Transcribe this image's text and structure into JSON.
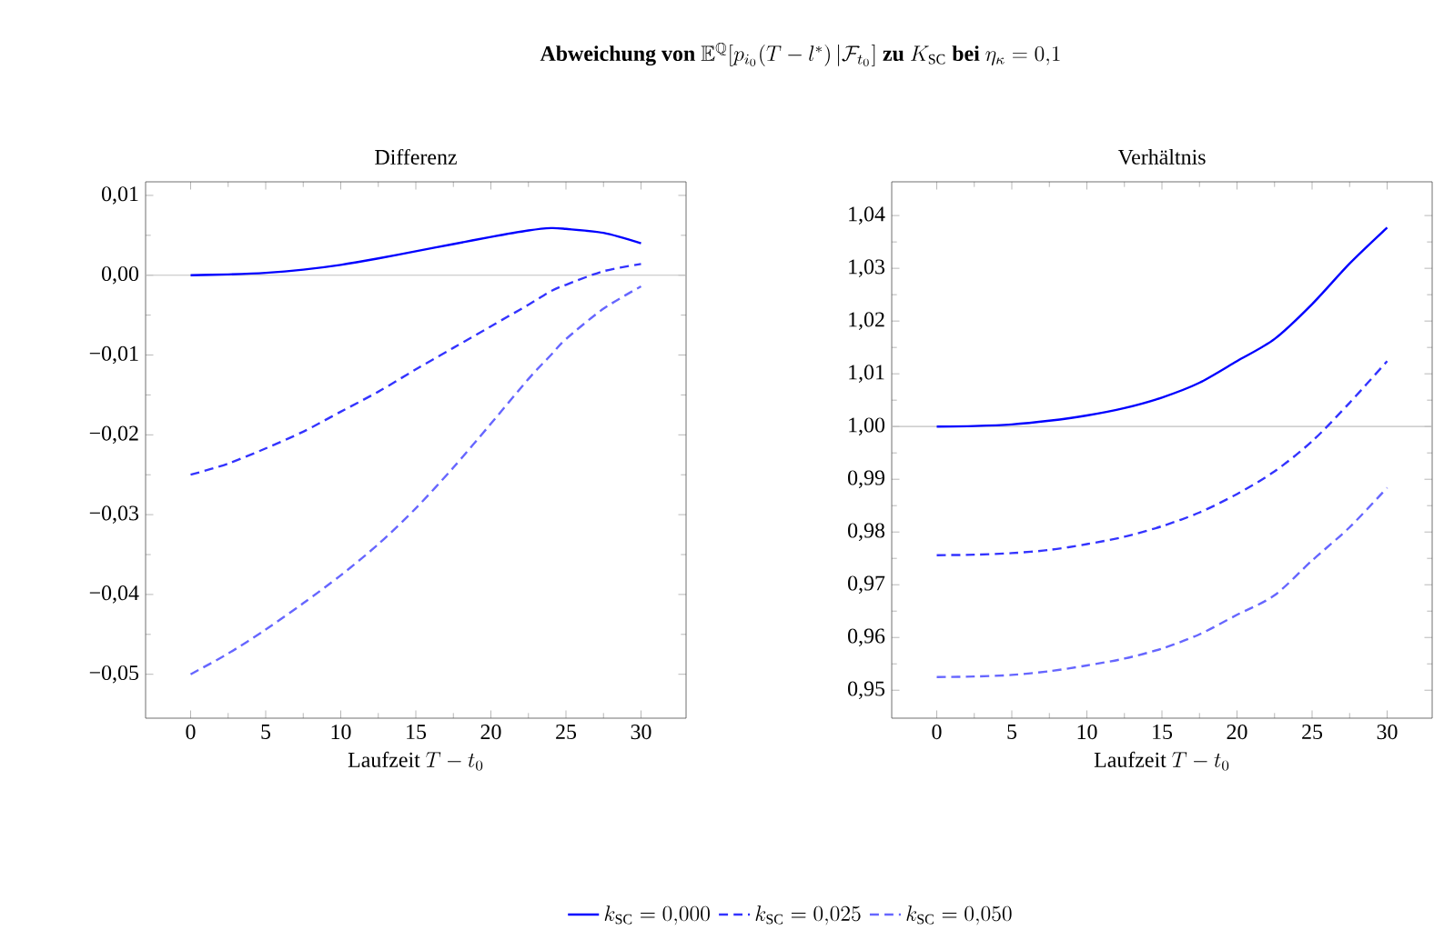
{
  "chart_data": [
    {
      "type": "line",
      "title": "\\textbf{Abweichung von }\\mathbb{E}^{\\mathbb{Q}}[p_{i_0}(T-l^*)\\,|\\mathcal{F}_{t_0}]\\textbf{ zu }K_{\\mathrm{SC}}\\textbf{ bei }\\eta_\\kappa=0{,}1",
      "subtitle": "Differenz",
      "xlabel": "\\mbox{Laufzeit }T-t_0",
      "x": [
        0,
        2.5,
        5,
        7.5,
        10,
        12.5,
        15,
        17.5,
        20,
        22.5,
        24,
        25,
        27.5,
        30
      ],
      "series": [
        {
          "name": "k_{\\mathrm{SC}}=0{,}000",
          "color": "#0000ff",
          "line_style": "solid",
          "values": [
            0.0,
            0.0001,
            0.0003,
            0.0007,
            0.0013,
            0.0021,
            0.003,
            0.0039,
            0.0048,
            0.0056,
            0.0059,
            0.0058,
            0.0053,
            0.004
          ]
        },
        {
          "name": "k_{\\mathrm{SC}}=0{,}025",
          "color": "#3333ff",
          "line_style": "dashed",
          "values": [
            -0.025,
            -0.0236,
            -0.0217,
            -0.0196,
            -0.0171,
            -0.0146,
            -0.0118,
            -0.0091,
            -0.0064,
            -0.0037,
            -0.002,
            -0.0012,
            0.0005,
            0.0014
          ]
        },
        {
          "name": "k_{\\mathrm{SC}}=0{,}050",
          "color": "#6666ff",
          "line_style": "dashed",
          "values": [
            -0.05,
            -0.0474,
            -0.0444,
            -0.0411,
            -0.0376,
            -0.0337,
            -0.0292,
            -0.0241,
            -0.0186,
            -0.013,
            -0.01,
            -0.008,
            -0.0042,
            -0.0014
          ]
        }
      ],
      "xlim": [
        -3,
        33
      ],
      "ylim": [
        -0.0555,
        0.0117
      ],
      "xticks": [
        0,
        5,
        10,
        15,
        20,
        25,
        30
      ],
      "yticks": [
        {
          "value": -0.05,
          "label": "−0,05"
        },
        {
          "value": -0.04,
          "label": "−0,04"
        },
        {
          "value": -0.03,
          "label": "−0,03"
        },
        {
          "value": -0.02,
          "label": "−0,02"
        },
        {
          "value": -0.01,
          "label": "−0,01"
        },
        {
          "value": 0,
          "label": "0,00"
        },
        {
          "value": 0.01,
          "label": "0,01"
        }
      ],
      "ref_lines": [
        {
          "axis": "y",
          "value": 0,
          "color": "#c0c0c0"
        }
      ],
      "legend": "bottom",
      "grid": false
    },
    {
      "type": "line",
      "subtitle": "Verhältnis",
      "xlabel": "\\mbox{Laufzeit }T-t_0",
      "x": [
        0,
        2.5,
        5,
        7.5,
        10,
        12.5,
        15,
        17.5,
        20,
        22.5,
        25,
        27.5,
        30
      ],
      "series": [
        {
          "color": "#0000ff",
          "line_style": "solid",
          "values": [
            1.0,
            1.0001,
            1.0004,
            1.0011,
            1.0021,
            1.0035,
            1.0055,
            1.0083,
            1.0124,
            1.0166,
            1.0232,
            1.0309,
            1.0377
          ]
        },
        {
          "color": "#3333ff",
          "line_style": "dashed",
          "values": [
            0.9756,
            0.9757,
            0.976,
            0.9766,
            0.9777,
            0.9791,
            0.9811,
            0.9837,
            0.9872,
            0.9915,
            0.9972,
            1.0045,
            1.0124
          ]
        },
        {
          "color": "#6666ff",
          "line_style": "dashed",
          "values": [
            0.9525,
            0.9526,
            0.9529,
            0.9536,
            0.9547,
            0.956,
            0.9579,
            0.9606,
            0.9643,
            0.968,
            0.9746,
            0.9809,
            0.9884
          ]
        }
      ],
      "xlim": [
        -3,
        33
      ],
      "ylim": [
        0.9447,
        1.0464
      ],
      "xticks": [
        0,
        5,
        10,
        15,
        20,
        25,
        30
      ],
      "yticks": [
        {
          "value": 0.95,
          "label": "0,95"
        },
        {
          "value": 0.96,
          "label": "0,96"
        },
        {
          "value": 0.97,
          "label": "0,97"
        },
        {
          "value": 0.98,
          "label": "0,98"
        },
        {
          "value": 0.99,
          "label": "0,99"
        },
        {
          "value": 1.0,
          "label": "1,00"
        },
        {
          "value": 1.01,
          "label": "1,01"
        },
        {
          "value": 1.02,
          "label": "1,02"
        },
        {
          "value": 1.03,
          "label": "1,03"
        },
        {
          "value": 1.04,
          "label": "1,04"
        }
      ],
      "ref_lines": [
        {
          "axis": "y",
          "value": 1.0,
          "color": "#c0c0c0"
        }
      ],
      "grid": false
    }
  ]
}
